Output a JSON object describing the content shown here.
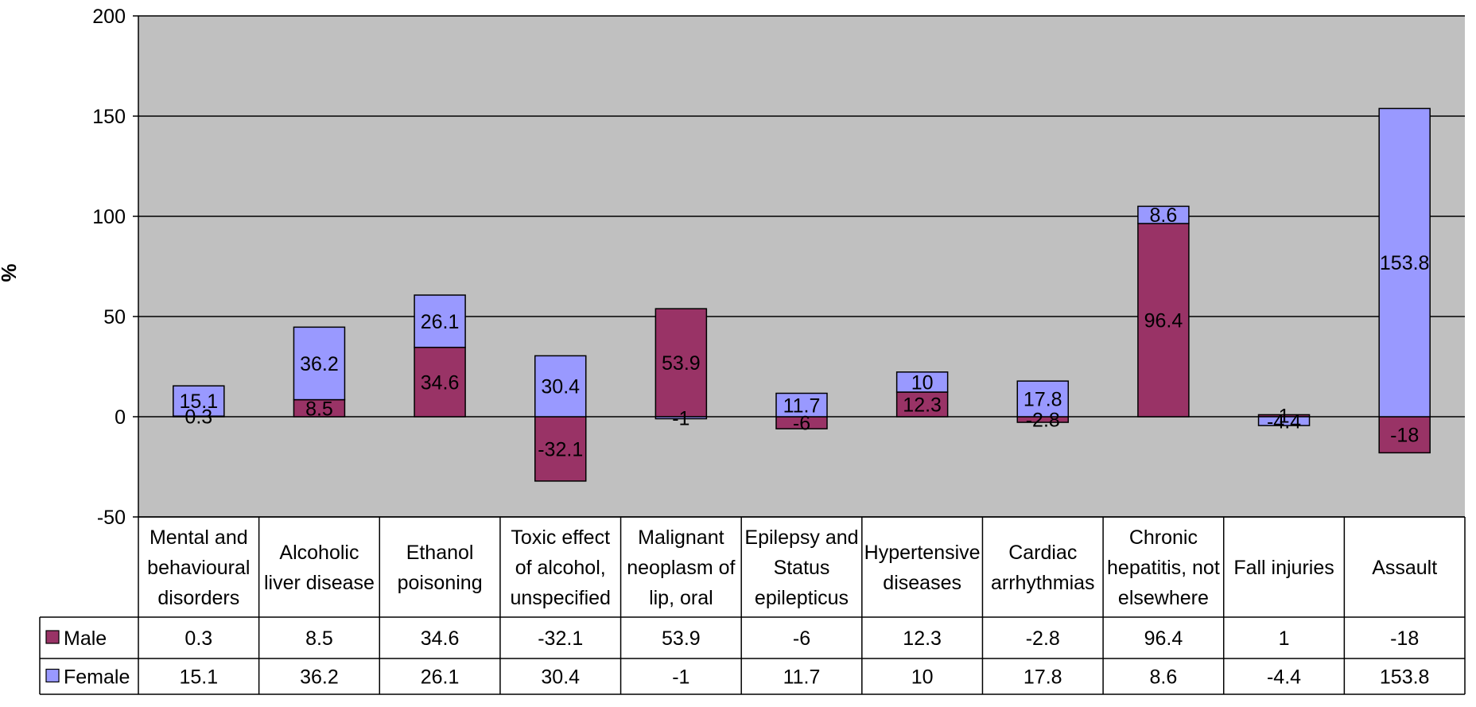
{
  "chart_data": {
    "type": "bar",
    "stacked": true,
    "ylabel": "%",
    "ylim": [
      -50,
      200
    ],
    "yticks": [
      -50,
      0,
      50,
      100,
      150,
      200
    ],
    "grid": true,
    "legend": "data-table-left",
    "categories": [
      "Mental and behavioural disorders",
      "Alcoholic liver disease",
      "Ethanol poisoning",
      "Toxic effect of alcohol, unspecified",
      "Malignant neoplasm of lip, oral",
      "Epilepsy and Status epilepticus",
      "Hypertensive diseases",
      "Cardiac arrhythmias",
      "Chronic hepatitis, not elsewhere",
      "Fall injuries",
      "Assault"
    ],
    "category_lines": [
      [
        "Mental and",
        "behavioural",
        "disorders"
      ],
      [
        "Alcoholic",
        "liver disease"
      ],
      [
        "Ethanol",
        "poisoning"
      ],
      [
        "Toxic effect",
        "of alcohol,",
        "unspecified"
      ],
      [
        "Malignant",
        "neoplasm of",
        "lip, oral"
      ],
      [
        "Epilepsy and",
        "Status",
        "epilepticus"
      ],
      [
        "Hypertensive",
        "diseases"
      ],
      [
        "Cardiac",
        "arrhythmias"
      ],
      [
        "Chronic",
        "hepatitis, not",
        "elsewhere"
      ],
      [
        "Fall injuries"
      ],
      [
        "Assault"
      ]
    ],
    "series": [
      {
        "name": "Male",
        "color": "#993366",
        "values": [
          0.3,
          8.5,
          34.6,
          -32.1,
          53.9,
          -6,
          12.3,
          -2.8,
          96.4,
          1,
          -18
        ]
      },
      {
        "name": "Female",
        "color": "#9999ff",
        "values": [
          15.1,
          36.2,
          26.1,
          30.4,
          -1,
          11.7,
          10,
          17.8,
          8.6,
          -4.4,
          153.8
        ]
      }
    ],
    "colors": {
      "plot_bg": "#c0c0c0",
      "grid": "#000000"
    }
  }
}
